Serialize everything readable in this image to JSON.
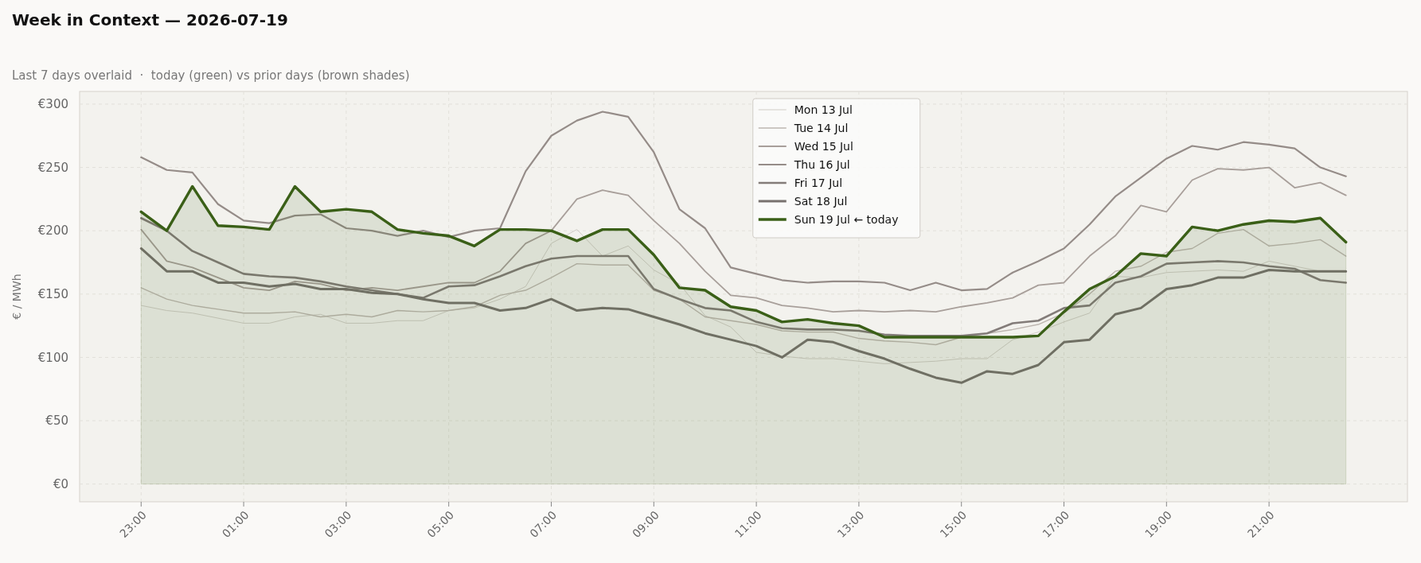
{
  "chart_data": {
    "type": "line",
    "title": "Week in Context — 2026-07-19",
    "subtitle": "Last 7 days overlaid  ·  today (green) vs prior days (brown shades)",
    "ylabel": "€ / MWh",
    "x": [
      "2026-07-18T23:00",
      "2026-07-18T23:30",
      "2026-07-19T00:00",
      "2026-07-19T00:30",
      "2026-07-19T01:00",
      "2026-07-19T01:30",
      "2026-07-19T02:00",
      "2026-07-19T02:30",
      "2026-07-19T03:00",
      "2026-07-19T03:30",
      "2026-07-19T04:00",
      "2026-07-19T04:30",
      "2026-07-19T05:00",
      "2026-07-19T05:30",
      "2026-07-19T06:00",
      "2026-07-19T06:30",
      "2026-07-19T07:00",
      "2026-07-19T07:30",
      "2026-07-19T08:00",
      "2026-07-19T08:30",
      "2026-07-19T09:00",
      "2026-07-19T09:30",
      "2026-07-19T10:00",
      "2026-07-19T10:30",
      "2026-07-19T11:00",
      "2026-07-19T11:30",
      "2026-07-19T12:00",
      "2026-07-19T12:30",
      "2026-07-19T13:00",
      "2026-07-19T13:30",
      "2026-07-19T14:00",
      "2026-07-19T14:30",
      "2026-07-19T15:00",
      "2026-07-19T15:30",
      "2026-07-19T16:00",
      "2026-07-19T16:30",
      "2026-07-19T17:00",
      "2026-07-19T17:30",
      "2026-07-19T18:00",
      "2026-07-19T18:30",
      "2026-07-19T19:00",
      "2026-07-19T19:30",
      "2026-07-19T20:00",
      "2026-07-19T20:30",
      "2026-07-19T21:00",
      "2026-07-19T21:30",
      "2026-07-19T22:00",
      "2026-07-19T22:30"
    ],
    "xlim": [
      "2026-07-18T21:48",
      "2026-07-19T23:42"
    ],
    "xticks": [
      {
        "value": "2026-07-18T23:00",
        "label": "23:00"
      },
      {
        "value": "2026-07-19T01:00",
        "label": "01:00"
      },
      {
        "value": "2026-07-19T03:00",
        "label": "03:00"
      },
      {
        "value": "2026-07-19T05:00",
        "label": "05:00"
      },
      {
        "value": "2026-07-19T07:00",
        "label": "07:00"
      },
      {
        "value": "2026-07-19T09:00",
        "label": "09:00"
      },
      {
        "value": "2026-07-19T11:00",
        "label": "11:00"
      },
      {
        "value": "2026-07-19T13:00",
        "label": "13:00"
      },
      {
        "value": "2026-07-19T15:00",
        "label": "15:00"
      },
      {
        "value": "2026-07-19T17:00",
        "label": "17:00"
      },
      {
        "value": "2026-07-19T19:00",
        "label": "19:00"
      },
      {
        "value": "2026-07-19T21:00",
        "label": "21:00"
      }
    ],
    "ylim": [
      -14,
      310
    ],
    "yticks": [
      {
        "value": 0,
        "label": "€0"
      },
      {
        "value": 50,
        "label": "€50"
      },
      {
        "value": 100,
        "label": "€100"
      },
      {
        "value": 150,
        "label": "€150"
      },
      {
        "value": 200,
        "label": "€200"
      },
      {
        "value": 250,
        "label": "€250"
      },
      {
        "value": 300,
        "label": "€300"
      }
    ],
    "grid": true,
    "legend": "top",
    "series": [
      {
        "name": "Mon 13 Jul",
        "color": "#d0ccc6",
        "values": [
          141,
          137,
          135,
          131,
          127,
          127,
          132,
          134,
          127,
          127,
          129,
          129,
          137,
          139,
          146,
          156,
          190,
          201,
          180,
          188,
          169,
          158,
          133,
          124,
          104,
          101,
          99,
          99,
          97,
          95,
          96,
          97,
          99,
          99,
          114,
          120,
          128,
          135,
          164,
          163,
          167,
          168,
          169,
          168,
          176,
          172,
          168,
          168
        ]
      },
      {
        "name": "Tue 14 Jul",
        "color": "#bdb6b0",
        "values": [
          155,
          146,
          141,
          138,
          135,
          135,
          136,
          132,
          134,
          132,
          137,
          136,
          137,
          140,
          149,
          153,
          163,
          174,
          173,
          173,
          153,
          146,
          132,
          129,
          126,
          121,
          120,
          120,
          115,
          113,
          112,
          110,
          116,
          119,
          122,
          126,
          135,
          150,
          168,
          172,
          183,
          186,
          198,
          201,
          188,
          190,
          193,
          180
        ]
      },
      {
        "name": "Wed 15 Jul",
        "color": "#a89f9a",
        "values": [
          201,
          176,
          171,
          163,
          155,
          153,
          160,
          158,
          153,
          155,
          153,
          156,
          159,
          159,
          168,
          190,
          200,
          225,
          232,
          228,
          208,
          190,
          168,
          149,
          147,
          141,
          139,
          136,
          137,
          136,
          137,
          136,
          140,
          143,
          147,
          157,
          159,
          180,
          196,
          220,
          215,
          240,
          249,
          248,
          250,
          234,
          238,
          228
        ]
      },
      {
        "name": "Thu 16 Jul",
        "color": "#958c88",
        "values": [
          258,
          248,
          246,
          221,
          208,
          206,
          212,
          213,
          202,
          200,
          196,
          200,
          195,
          200,
          202,
          247,
          275,
          287,
          294,
          290,
          262,
          217,
          202,
          171,
          166,
          161,
          159,
          160,
          160,
          159,
          153,
          159,
          153,
          154,
          167,
          176,
          186,
          205,
          227,
          242,
          257,
          267,
          264,
          270,
          268,
          265,
          250,
          243
        ]
      },
      {
        "name": "Fri 17 Jul",
        "color": "#837c79",
        "values": [
          210,
          200,
          184,
          175,
          166,
          164,
          163,
          160,
          156,
          153,
          150,
          147,
          156,
          157,
          164,
          172,
          178,
          180,
          180,
          180,
          154,
          146,
          139,
          137,
          128,
          123,
          122,
          122,
          121,
          118,
          117,
          117,
          117,
          119,
          127,
          129,
          139,
          141,
          159,
          164,
          174,
          175,
          176,
          175,
          172,
          170,
          161,
          159
        ]
      },
      {
        "name": "Sat 18 Jul",
        "color": "#77716e",
        "values": [
          186,
          168,
          168,
          159,
          159,
          156,
          158,
          154,
          154,
          151,
          150,
          146,
          143,
          143,
          137,
          139,
          146,
          137,
          139,
          138,
          132,
          126,
          119,
          114,
          109,
          100,
          114,
          112,
          105,
          99,
          91,
          84,
          80,
          89,
          87,
          94,
          112,
          114,
          134,
          139,
          154,
          157,
          163,
          163,
          169,
          168,
          168,
          168
        ]
      },
      {
        "name": "Sun 19 Jul  ← today",
        "type": "area",
        "color": "#3a5f17",
        "values": [
          215,
          200,
          235,
          204,
          203,
          201,
          235,
          215,
          217,
          215,
          201,
          198,
          196,
          188,
          201,
          201,
          200,
          192,
          201,
          201,
          181,
          155,
          153,
          140,
          137,
          128,
          130,
          127,
          125,
          116,
          116,
          116,
          116,
          116,
          116,
          117,
          136,
          154,
          164,
          182,
          180,
          203,
          200,
          205,
          208,
          207,
          210,
          191
        ]
      }
    ]
  }
}
